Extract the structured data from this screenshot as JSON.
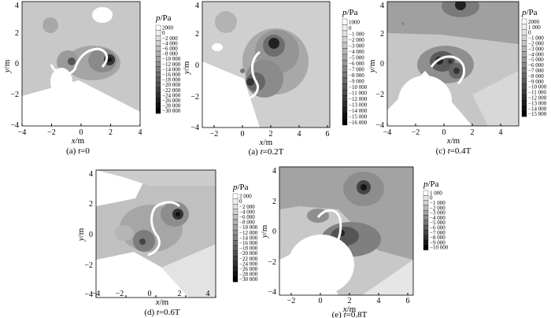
{
  "panels": [
    {
      "id": "p1",
      "caption_prefix": "(a) ",
      "caption_var": "t",
      "caption_value": "=0",
      "xlabel_var": "x",
      "xlabel_unit": "/m",
      "ylabel_var": "y",
      "ylabel_unit": "/m",
      "xticks": [
        "−4",
        "−2",
        "0",
        "2",
        "4"
      ],
      "yticks": [
        "4",
        "2",
        "0",
        "−2",
        "−4"
      ],
      "colorbar_title_var": "p",
      "colorbar_title_unit": "/Pa",
      "colorbar_labels": [
        "2000",
        "0",
        "−2 000",
        "−4 000",
        "−6 000",
        "−8 000",
        "−10 000",
        "−12 000",
        "−14 000",
        "−16 000",
        "−18 000",
        "−20 000",
        "−22 000",
        "−24 000",
        "−26 000",
        "−28 000",
        "−30 000"
      ]
    },
    {
      "id": "p2",
      "caption_prefix": "(a) ",
      "caption_var": "t",
      "caption_value": "=0.2T",
      "xlabel_var": "x",
      "xlabel_unit": "/m",
      "ylabel_var": "y",
      "ylabel_unit": "/m",
      "xticks": [
        "−2",
        "0",
        "2",
        "4",
        "6"
      ],
      "yticks": [
        "4",
        "2",
        "0",
        "−2",
        "−4"
      ],
      "colorbar_title_var": "p",
      "colorbar_title_unit": "/Pa",
      "colorbar_labels": [
        "1000",
        "0",
        "−1 000",
        "−2 000",
        "−3 000",
        "−4 000",
        "−5 000",
        "−6 000",
        "−7 000",
        "−8 000",
        "−9 000",
        "−10 000",
        "−11 000",
        "−12 000",
        "−13 000",
        "−14 000",
        "−15 000",
        "−16 000"
      ]
    },
    {
      "id": "p3",
      "caption_prefix": "(c) ",
      "caption_var": "t",
      "caption_value": "=0.4T",
      "xlabel_var": "x",
      "xlabel_unit": "/m",
      "ylabel_var": "y",
      "ylabel_unit": "/m",
      "xticks": [
        "−4",
        "−2",
        "0",
        "2",
        "4"
      ],
      "yticks": [
        "4",
        "2",
        "0",
        "−2",
        "−4"
      ],
      "colorbar_title_var": "p",
      "colorbar_title_unit": "/Pa",
      "colorbar_labels": [
        "2000",
        "1 000",
        "0",
        "−1 000",
        "−2 000",
        "−3 000",
        "−4 000",
        "−5 000",
        "−6 000",
        "−7 000",
        "−8 000",
        "−9 000",
        "−10 000",
        "−11 000",
        "−12 000",
        "−13 000",
        "−14 000",
        "−15 000"
      ]
    },
    {
      "id": "p4",
      "caption_prefix": "(d) ",
      "caption_var": "t",
      "caption_value": "=0.6T",
      "xlabel_var": "x",
      "xlabel_unit": "/m",
      "ylabel_var": "y",
      "ylabel_unit": "/m",
      "xticks": [
        "−4",
        "−2",
        "0",
        "2",
        "4"
      ],
      "yticks": [
        "4",
        "2",
        "0",
        "−2",
        "−4"
      ],
      "colorbar_title_var": "p",
      "colorbar_title_unit": "/Pa",
      "colorbar_labels": [
        "2 000",
        "0",
        "−2 000",
        "−4 000",
        "−6 000",
        "−8 000",
        "−10 000",
        "−12 000",
        "−14 000",
        "−16 000",
        "−18 000",
        "−20 000",
        "−22 000",
        "−24 000",
        "−26 000",
        "−28 000",
        "−30 000"
      ]
    },
    {
      "id": "p5",
      "caption_prefix": "(e) ",
      "caption_var": "t",
      "caption_value": "=0.8T",
      "xlabel_var": "x",
      "xlabel_unit": "/m",
      "ylabel_var": "y",
      "ylabel_unit": "/m",
      "xticks": [
        "−2",
        "0",
        "2",
        "4",
        "6"
      ],
      "yticks": [
        "4",
        "2",
        "0",
        "−2",
        "−4"
      ],
      "colorbar_title_var": "p",
      "colorbar_title_unit": "/Pa",
      "colorbar_labels": [
        "1 000",
        "0",
        "−1 000",
        "−2 000",
        "−3 000",
        "−4 000",
        "−5 000",
        "−6 000",
        "−7 000",
        "−8 000",
        "−9 000",
        "−10 000"
      ]
    }
  ]
}
